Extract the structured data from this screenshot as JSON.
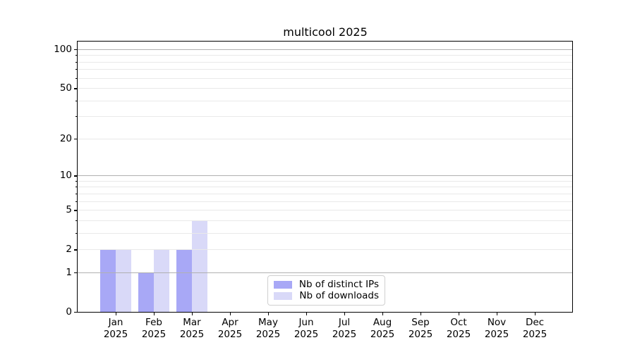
{
  "chart_data": {
    "type": "bar",
    "title": "multicool 2025",
    "x_labels": [
      {
        "line1": "Jan",
        "line2": "2025"
      },
      {
        "line1": "Feb",
        "line2": "2025"
      },
      {
        "line1": "Mar",
        "line2": "2025"
      },
      {
        "line1": "Apr",
        "line2": "2025"
      },
      {
        "line1": "May",
        "line2": "2025"
      },
      {
        "line1": "Jun",
        "line2": "2025"
      },
      {
        "line1": "Jul",
        "line2": "2025"
      },
      {
        "line1": "Aug",
        "line2": "2025"
      },
      {
        "line1": "Sep",
        "line2": "2025"
      },
      {
        "line1": "Oct",
        "line2": "2025"
      },
      {
        "line1": "Nov",
        "line2": "2025"
      },
      {
        "line1": "Dec",
        "line2": "2025"
      }
    ],
    "series": [
      {
        "name": "Nb of distinct IPs",
        "color": "#a8a8f6",
        "values": [
          2,
          1,
          2,
          0,
          0,
          0,
          0,
          0,
          0,
          0,
          0,
          0
        ]
      },
      {
        "name": "Nb of downloads",
        "color": "#d9d9f8",
        "values": [
          2,
          2,
          4,
          0,
          0,
          0,
          0,
          0,
          0,
          0,
          0,
          0
        ]
      }
    ],
    "yscale": "log1p",
    "ylim": [
      0,
      115
    ],
    "y_tick_values": [
      0,
      1,
      2,
      5,
      10,
      20,
      50,
      100
    ],
    "y_major_grid_values": [
      1,
      10,
      100
    ],
    "y_minor_tick_values": [
      3,
      4,
      6,
      7,
      8,
      9,
      30,
      40,
      60,
      70,
      80,
      90
    ],
    "grid": {
      "axis": "y",
      "major_color": "#b0b0b0",
      "minor_color": "#e9e9e9"
    },
    "legend_position": "lower center"
  }
}
